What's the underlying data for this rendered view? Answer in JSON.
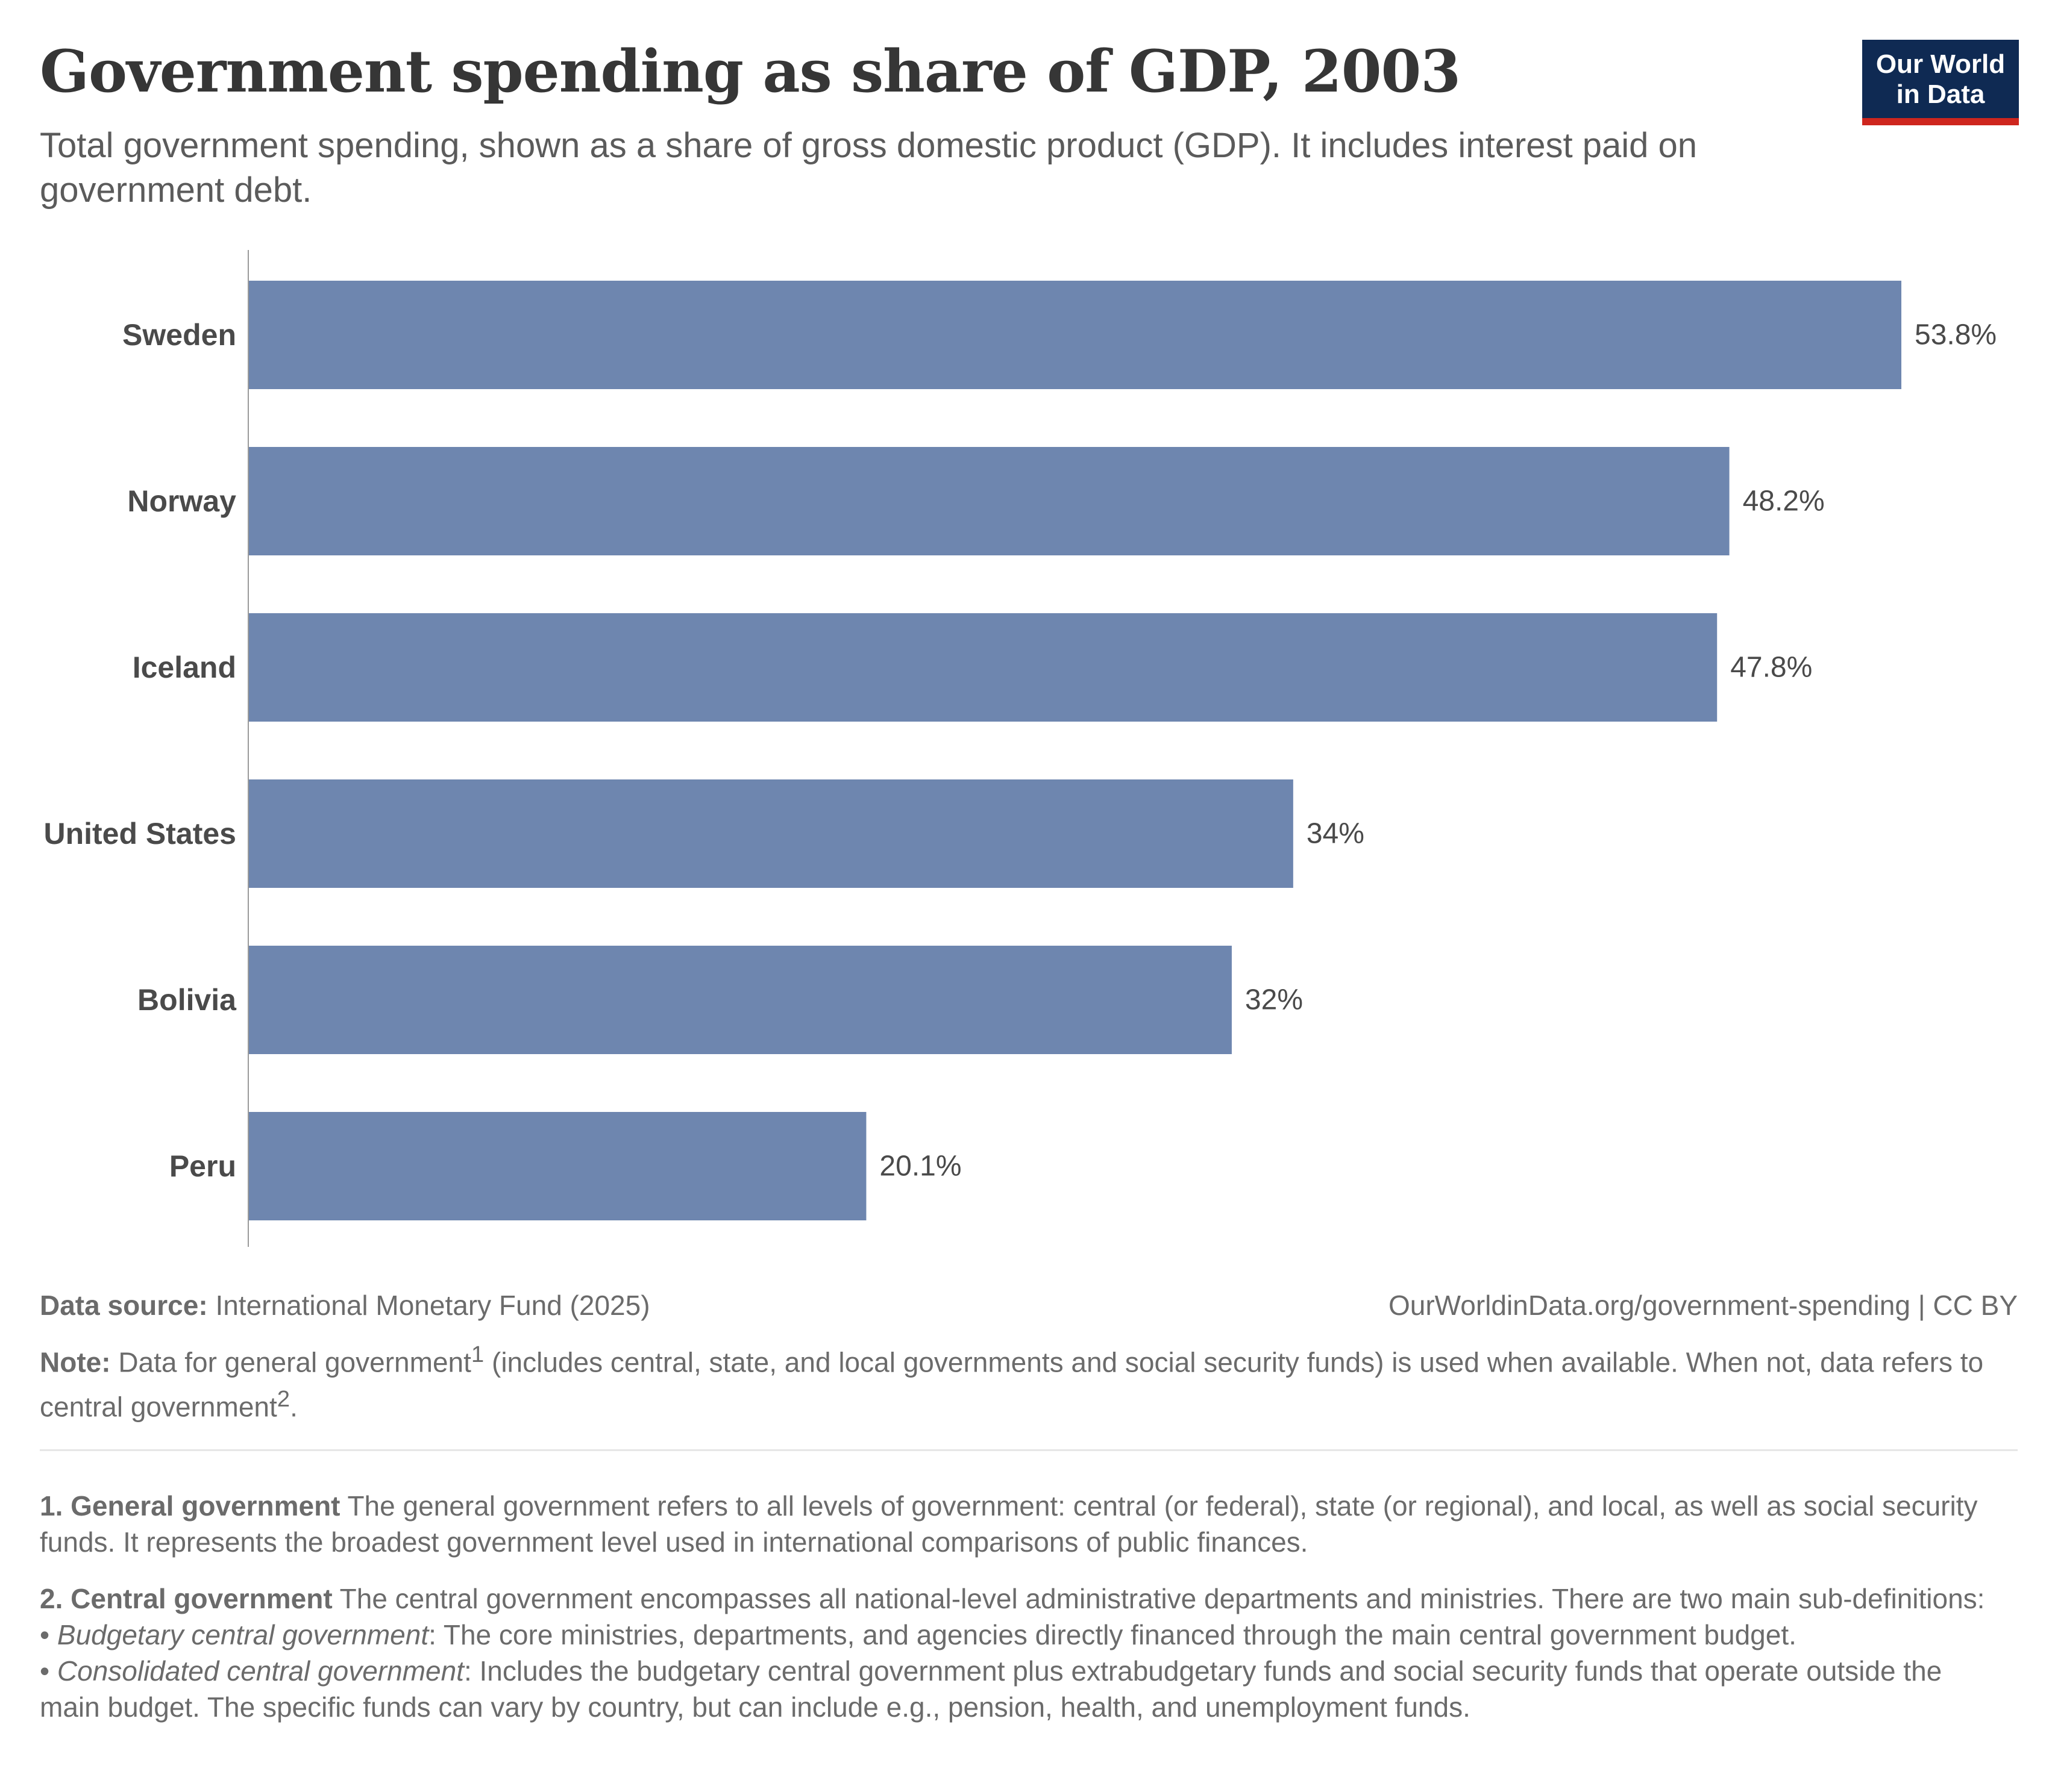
{
  "header": {
    "title": "Government spending as share of GDP, 2003",
    "subtitle": "Total government spending, shown as a share of gross domestic product (GDP). It includes interest paid on government debt.",
    "logo_line1": "Our World",
    "logo_line2": "in Data"
  },
  "colors": {
    "bar": "#6e86af",
    "axis": "#9a9a9a",
    "logo_bg": "#0f2a53",
    "logo_accent": "#ce261e"
  },
  "chart_data": {
    "type": "bar",
    "orientation": "horizontal",
    "categories": [
      "Sweden",
      "Norway",
      "Iceland",
      "United States",
      "Bolivia",
      "Peru"
    ],
    "values": [
      53.8,
      48.2,
      47.8,
      34,
      32,
      20.1
    ],
    "value_labels": [
      "53.8%",
      "48.2%",
      "47.8%",
      "34%",
      "32%",
      "20.1%"
    ],
    "unit": "%",
    "xlim": [
      0,
      53.8
    ],
    "grid": false,
    "legend": "none"
  },
  "footer": {
    "source_label": "Data source:",
    "source_text": "International Monetary Fund (2025)",
    "url": "OurWorldinData.org/government-spending",
    "license": "| CC BY",
    "note_label": "Note:",
    "note_part1": "Data for general government",
    "note_sup1": "1",
    "note_part2": "(includes central, state, and local governments and social security funds) is used when available. When not, data refers to central government",
    "note_sup2": "2",
    "note_end": "."
  },
  "footnotes": {
    "fn1_label": "1. General government",
    "fn1_text": "The general government refers to all levels of government: central (or federal), state (or regional), and local, as well as social security funds. It represents the broadest government level used in international comparisons of public finances.",
    "fn2_label": "2. Central government",
    "fn2_text": "The central government encompasses all national-level administrative departments and ministries. There are two main sub-definitions:",
    "fn2_bullet1_term": "Budgetary central government",
    "fn2_bullet1_text": ": The core ministries, departments, and agencies directly financed through the main central government budget.",
    "fn2_bullet2_term": "Consolidated central government",
    "fn2_bullet2_text": ": Includes the budgetary central government plus extrabudgetary funds and social security funds that operate outside the main budget. The specific funds can vary by country, but can include e.g., pension, health, and unemployment funds."
  }
}
